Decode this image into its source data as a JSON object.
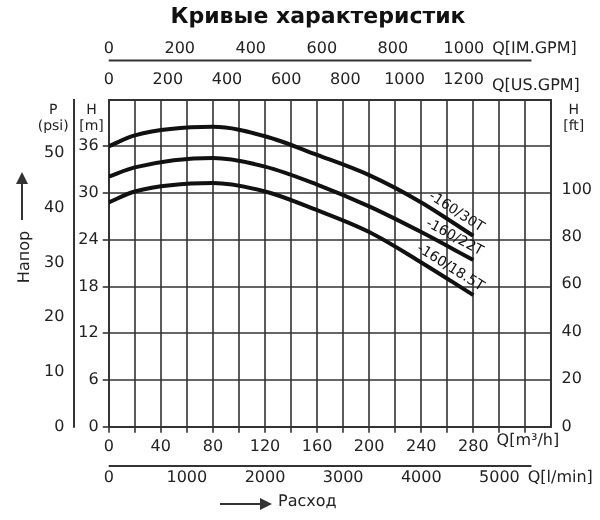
{
  "chart_data": {
    "type": "line",
    "title": "Кривые характеристик",
    "xlabel": "Q[m³/h]",
    "x2label": "Q[US.GPM]",
    "ylabel": "H [m]",
    "y2label": "P (psi)",
    "y3label": "H [ft]",
    "annotations": [
      "Напор",
      "Расход",
      "0",
      "200",
      "400",
      "600",
      "800",
      "1000",
      "Q[IM.GPM]",
      "0",
      "1000",
      "2000",
      "3000",
      "4000",
      "5000",
      "Q[l/min]"
    ],
    "x": [
      0,
      20,
      80,
      120,
      160,
      200,
      240,
      280
    ],
    "series": [
      {
        "name": "-160/30T",
        "color": "#111111",
        "values": [
          36,
          37.4,
          38.5,
          37.3,
          34.9,
          32.3,
          28.8,
          24.5
        ]
      },
      {
        "name": "-160/22T",
        "color": "#111111",
        "values": [
          32.1,
          33.3,
          34.5,
          33.4,
          31.1,
          28.3,
          25,
          21.4
        ]
      },
      {
        "name": "-160/18.5T",
        "color": "#111111",
        "values": [
          28.8,
          30.2,
          31.3,
          30.2,
          27.8,
          25,
          21.1,
          16.9
        ]
      }
    ],
    "xlim": [
      0,
      340
    ],
    "xticks": [
      0,
      {
        "value": 20,
        "label": null
      },
      40,
      {
        "value": 60,
        "label": null
      },
      80,
      {
        "value": 100,
        "label": null
      },
      120,
      {
        "value": 140,
        "label": null
      },
      160,
      {
        "value": 180,
        "label": null
      },
      200,
      {
        "value": 220,
        "label": null
      },
      240,
      {
        "value": 260,
        "label": null
      },
      280,
      {
        "value": 300,
        "label": null
      },
      {
        "value": 320,
        "label": null
      }
    ],
    "x2lim": [
      0,
      1497
    ],
    "x2ticks": [
      0,
      200,
      400,
      600,
      800,
      1000,
      1200
    ],
    "ylim": [
      0,
      42
    ],
    "yticks": [
      0,
      6,
      12,
      18,
      24,
      30,
      36
    ],
    "y2lim": [
      0,
      59.7
    ],
    "y2ticks": [
      0,
      10,
      20,
      30,
      40,
      50
    ],
    "y3lim": [
      0,
      137.8
    ],
    "y3ticks": [
      0,
      20,
      40,
      60,
      80,
      100
    ],
    "grid": true,
    "marker": "none",
    "line_style": "solid"
  }
}
